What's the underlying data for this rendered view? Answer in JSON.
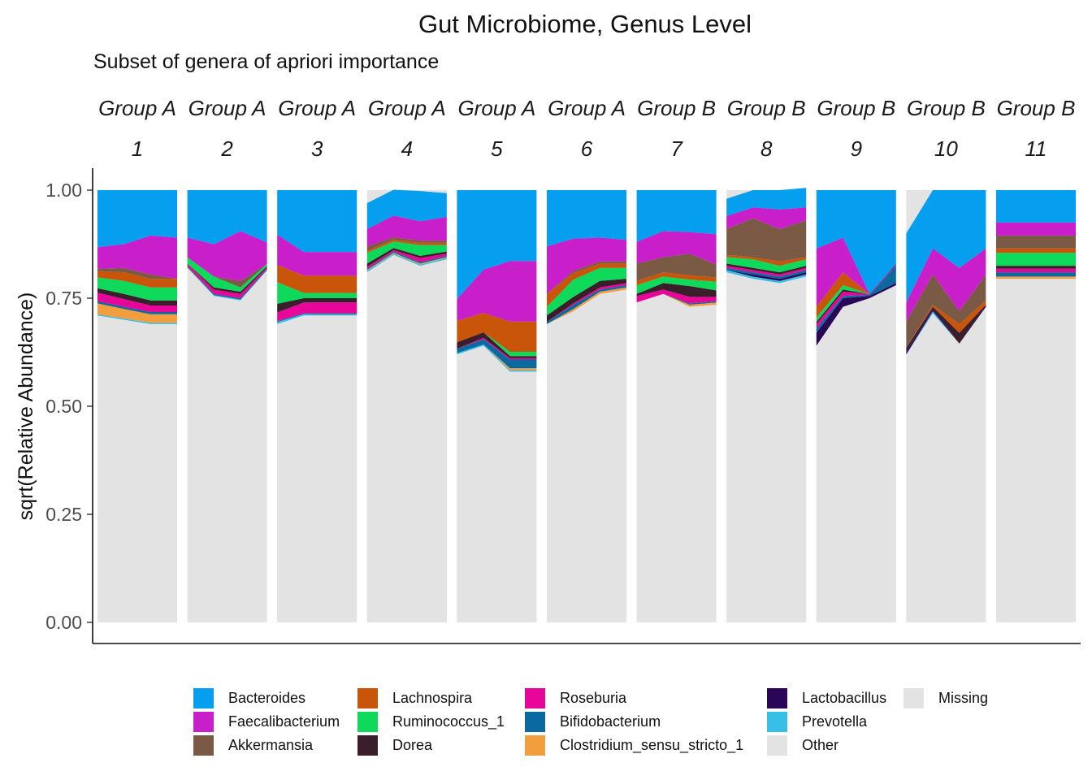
{
  "chart_data": {
    "type": "area",
    "title": "Gut Microbiome, Genus Level",
    "subtitle": "Subset of genera of apriori importance",
    "xlabel": "",
    "ylabel": "sqrt(Relative Abundance)",
    "ylim": [
      0,
      1.05
    ],
    "yticks": [
      "0.00",
      "0.25",
      "0.50",
      "0.75",
      "1.00"
    ],
    "ytick_values": [
      0,
      0.25,
      0.5,
      0.75,
      1.0
    ],
    "legend_position": "bottom",
    "stack_order": [
      "Other",
      "Prevotella",
      "Lactobacillus",
      "Clostridium_sensu_stricto_1",
      "Bifidobacterium",
      "Roseburia",
      "Dorea",
      "Ruminococcus_1",
      "Lachnospira",
      "Akkermansia",
      "Faecalibacterium",
      "Bacteroides"
    ],
    "legend": [
      {
        "name": "Bacteroides",
        "color": "#069EEF"
      },
      {
        "name": "Faecalibacterium",
        "color": "#C91FCB"
      },
      {
        "name": "Akkermansia",
        "color": "#7A5A44"
      },
      {
        "name": "Lachnospira",
        "color": "#C9550A"
      },
      {
        "name": "Ruminococcus_1",
        "color": "#0FD95A"
      },
      {
        "name": "Dorea",
        "color": "#3A1E2A"
      },
      {
        "name": "Roseburia",
        "color": "#E8069A"
      },
      {
        "name": "Bifidobacterium",
        "color": "#0A6AA0"
      },
      {
        "name": "Clostridium_sensu_stricto_1",
        "color": "#F29E3E"
      },
      {
        "name": "Lactobacillus",
        "color": "#2B0556"
      },
      {
        "name": "Prevotella",
        "color": "#37BFE8"
      },
      {
        "name": "Other",
        "color": "#E3E3E3"
      },
      {
        "name": "Missing",
        "color": "#E3E3E3"
      }
    ],
    "panels": [
      {
        "group": "Group A",
        "id": "1",
        "layers": [
          [
            0.71,
            0.7,
            0.69,
            0.69
          ],
          [
            0.003,
            0.003,
            0.003,
            0.003
          ],
          [
            0.0,
            0.0,
            0.0,
            0.0
          ],
          [
            0.025,
            0.022,
            0.02,
            0.02
          ],
          [
            0.005,
            0.005,
            0.005,
            0.005
          ],
          [
            0.02,
            0.018,
            0.015,
            0.015
          ],
          [
            0.01,
            0.012,
            0.012,
            0.012
          ],
          [
            0.025,
            0.03,
            0.03,
            0.03
          ],
          [
            0.015,
            0.02,
            0.02,
            0.02
          ],
          [
            0.005,
            0.01,
            0.01,
            0.0
          ],
          [
            0.05,
            0.055,
            0.09,
            0.095
          ],
          [
            0.132,
            0.125,
            0.105,
            0.11
          ]
        ]
      },
      {
        "group": "Group A",
        "id": "2",
        "layers": [
          [
            0.82,
            0.755,
            0.745,
            0.815
          ],
          [
            0.0,
            0.002,
            0.002,
            0.0
          ],
          [
            0.0,
            0.0,
            0.0,
            0.0
          ],
          [
            0.002,
            0.0,
            0.0,
            0.0
          ],
          [
            0.003,
            0.003,
            0.003,
            0.003
          ],
          [
            0.005,
            0.01,
            0.01,
            0.003
          ],
          [
            0.0,
            0.005,
            0.005,
            0.003
          ],
          [
            0.015,
            0.025,
            0.01,
            0.005
          ],
          [
            0.0,
            0.0,
            0.0,
            0.0
          ],
          [
            0.0,
            0.0,
            0.015,
            0.0
          ],
          [
            0.045,
            0.075,
            0.115,
            0.05
          ],
          [
            0.11,
            0.125,
            0.095,
            0.121
          ]
        ]
      },
      {
        "group": "Group A",
        "id": "3",
        "layers": [
          [
            0.69,
            0.71,
            0.71,
            0.71
          ],
          [
            0.005,
            0.003,
            0.003,
            0.003
          ],
          [
            0.0,
            0.0,
            0.0,
            0.0
          ],
          [
            0.0,
            0.0,
            0.0,
            0.0
          ],
          [
            0.002,
            0.002,
            0.002,
            0.002
          ],
          [
            0.02,
            0.025,
            0.025,
            0.025
          ],
          [
            0.02,
            0.01,
            0.01,
            0.01
          ],
          [
            0.05,
            0.012,
            0.012,
            0.012
          ],
          [
            0.04,
            0.04,
            0.04,
            0.04
          ],
          [
            0.0,
            0.0,
            0.0,
            0.0
          ],
          [
            0.07,
            0.055,
            0.055,
            0.055
          ],
          [
            0.103,
            0.143,
            0.143,
            0.143
          ]
        ]
      },
      {
        "group": "Group A",
        "id": "4",
        "layers": [
          [
            0.81,
            0.85,
            0.825,
            0.84
          ],
          [
            0.003,
            0.003,
            0.003,
            0.003
          ],
          [
            0.0,
            0.0,
            0.0,
            0.0
          ],
          [
            0.002,
            0.002,
            0.002,
            0.002
          ],
          [
            0.003,
            0.003,
            0.003,
            0.003
          ],
          [
            0.005,
            0.003,
            0.01,
            0.005
          ],
          [
            0.007,
            0.005,
            0.005,
            0.005
          ],
          [
            0.025,
            0.015,
            0.025,
            0.015
          ],
          [
            0.005,
            0.005,
            0.005,
            0.005
          ],
          [
            0.01,
            0.005,
            0.005,
            0.005
          ],
          [
            0.04,
            0.05,
            0.045,
            0.055
          ],
          [
            0.06,
            0.06,
            0.07,
            0.055
          ]
        ]
      },
      {
        "group": "Group A",
        "id": "5",
        "layers": [
          [
            0.62,
            0.64,
            0.58,
            0.58
          ],
          [
            0.003,
            0.003,
            0.003,
            0.003
          ],
          [
            0.0,
            0.0,
            0.0,
            0.0
          ],
          [
            0.0,
            0.0,
            0.005,
            0.005
          ],
          [
            0.01,
            0.012,
            0.02,
            0.02
          ],
          [
            0.0,
            0.003,
            0.003,
            0.003
          ],
          [
            0.015,
            0.013,
            0.005,
            0.005
          ],
          [
            0.0,
            0.0,
            0.01,
            0.01
          ],
          [
            0.05,
            0.045,
            0.07,
            0.07
          ],
          [
            0.0,
            0.0,
            0.0,
            0.0
          ],
          [
            0.05,
            0.1,
            0.14,
            0.14
          ],
          [
            0.252,
            0.184,
            0.164,
            0.164
          ]
        ]
      },
      {
        "group": "Group A",
        "id": "6",
        "layers": [
          [
            0.69,
            0.72,
            0.76,
            0.77
          ],
          [
            0.0,
            0.0,
            0.0,
            0.0
          ],
          [
            0.0,
            0.0,
            0.0,
            0.0
          ],
          [
            0.0,
            0.005,
            0.005,
            0.005
          ],
          [
            0.005,
            0.01,
            0.005,
            0.005
          ],
          [
            0.0,
            0.003,
            0.005,
            0.005
          ],
          [
            0.015,
            0.015,
            0.015,
            0.01
          ],
          [
            0.02,
            0.04,
            0.03,
            0.025
          ],
          [
            0.03,
            0.015,
            0.01,
            0.01
          ],
          [
            0.0,
            0.005,
            0.005,
            0.005
          ],
          [
            0.11,
            0.075,
            0.055,
            0.05
          ],
          [
            0.13,
            0.112,
            0.11,
            0.115
          ]
        ]
      },
      {
        "group": "Group B",
        "id": "7",
        "layers": [
          [
            0.74,
            0.76,
            0.73,
            0.735
          ],
          [
            0.0,
            0.0,
            0.0,
            0.0
          ],
          [
            0.0,
            0.0,
            0.0,
            0.0
          ],
          [
            0.0,
            0.0,
            0.005,
            0.005
          ],
          [
            0.0,
            0.0,
            0.003,
            0.003
          ],
          [
            0.015,
            0.01,
            0.015,
            0.01
          ],
          [
            0.005,
            0.015,
            0.025,
            0.015
          ],
          [
            0.02,
            0.015,
            0.015,
            0.02
          ],
          [
            0.01,
            0.01,
            0.01,
            0.01
          ],
          [
            0.04,
            0.035,
            0.05,
            0.03
          ],
          [
            0.05,
            0.06,
            0.05,
            0.07
          ],
          [
            0.12,
            0.095,
            0.097,
            0.102
          ]
        ]
      },
      {
        "group": "Group B",
        "id": "8",
        "layers": [
          [
            0.81,
            0.795,
            0.785,
            0.8
          ],
          [
            0.005,
            0.005,
            0.005,
            0.005
          ],
          [
            0.0,
            0.005,
            0.005,
            0.005
          ],
          [
            0.0,
            0.0,
            0.0,
            0.0
          ],
          [
            0.005,
            0.005,
            0.005,
            0.005
          ],
          [
            0.005,
            0.005,
            0.005,
            0.005
          ],
          [
            0.005,
            0.005,
            0.005,
            0.005
          ],
          [
            0.015,
            0.02,
            0.015,
            0.015
          ],
          [
            0.005,
            0.005,
            0.01,
            0.005
          ],
          [
            0.06,
            0.09,
            0.075,
            0.085
          ],
          [
            0.03,
            0.025,
            0.045,
            0.03
          ],
          [
            0.04,
            0.04,
            0.045,
            0.045
          ]
        ]
      },
      {
        "group": "Group B",
        "id": "9",
        "layers": [
          [
            0.64,
            0.73,
            0.75,
            0.78
          ],
          [
            0.0,
            0.0,
            0.0,
            0.0
          ],
          [
            0.03,
            0.02,
            0.005,
            0.005
          ],
          [
            0.0,
            0.0,
            0.0,
            0.0
          ],
          [
            0.01,
            0.005,
            0.003,
            0.04
          ],
          [
            0.01,
            0.01,
            0.002,
            0.002
          ],
          [
            0.005,
            0.005,
            0.0,
            0.002
          ],
          [
            0.01,
            0.01,
            0.0,
            0.0
          ],
          [
            0.025,
            0.03,
            0.0,
            0.0
          ],
          [
            0.0,
            0.0,
            0.0,
            0.0
          ],
          [
            0.135,
            0.08,
            0.0,
            0.0
          ],
          [
            0.135,
            0.11,
            0.24,
            0.171
          ]
        ]
      },
      {
        "group": "Group B",
        "id": "10",
        "layers": [
          [
            0.62,
            0.715,
            0.645,
            0.73
          ],
          [
            0.0,
            0.005,
            0.0,
            0.0
          ],
          [
            0.005,
            0.005,
            0.0,
            0.005
          ],
          [
            0.0,
            0.0,
            0.0,
            0.0
          ],
          [
            0.0,
            0.0,
            0.0,
            0.0
          ],
          [
            0.0,
            0.0,
            0.0,
            0.0
          ],
          [
            0.01,
            0.005,
            0.025,
            0.0
          ],
          [
            0.0,
            0.0,
            0.0,
            0.0
          ],
          [
            0.0,
            0.005,
            0.02,
            0.01
          ],
          [
            0.06,
            0.07,
            0.03,
            0.06
          ],
          [
            0.045,
            0.06,
            0.1,
            0.06
          ],
          [
            0.16,
            0.135,
            0.18,
            0.135
          ]
        ]
      },
      {
        "group": "Group B",
        "id": "11",
        "layers": [
          [
            0.795,
            0.795,
            0.795,
            0.795
          ],
          [
            0.0,
            0.0,
            0.0,
            0.0
          ],
          [
            0.0,
            0.0,
            0.0,
            0.0
          ],
          [
            0.005,
            0.005,
            0.005,
            0.005
          ],
          [
            0.01,
            0.01,
            0.01,
            0.01
          ],
          [
            0.008,
            0.008,
            0.008,
            0.008
          ],
          [
            0.007,
            0.007,
            0.007,
            0.007
          ],
          [
            0.03,
            0.03,
            0.03,
            0.03
          ],
          [
            0.01,
            0.01,
            0.01,
            0.01
          ],
          [
            0.03,
            0.03,
            0.03,
            0.03
          ],
          [
            0.03,
            0.03,
            0.03,
            0.03
          ],
          [
            0.075,
            0.075,
            0.075,
            0.075
          ]
        ]
      }
    ]
  }
}
